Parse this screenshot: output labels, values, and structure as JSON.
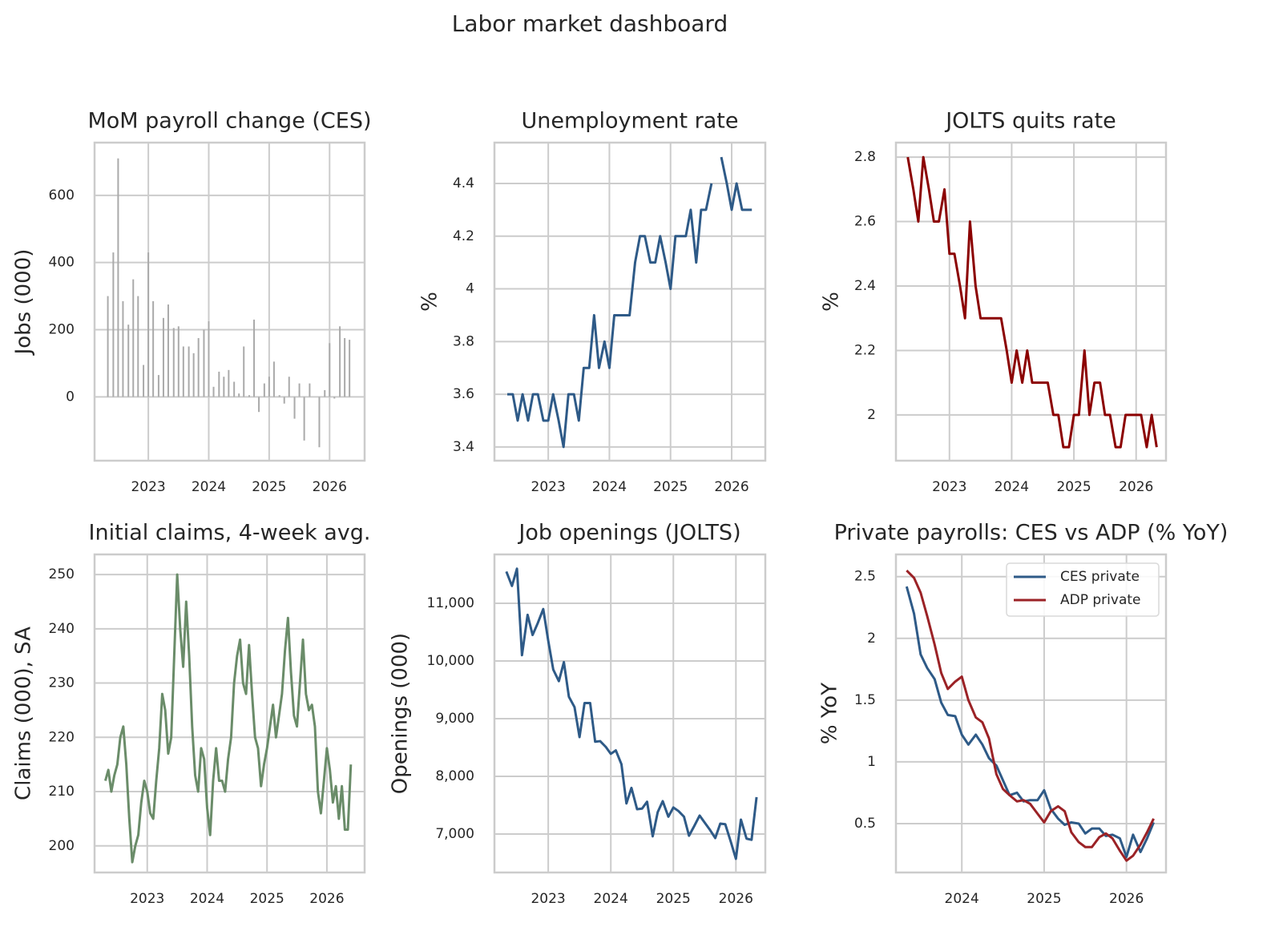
{
  "title": "Labor market dashboard",
  "chart_data": [
    {
      "type": "bar",
      "title": "MoM payroll change (CES)",
      "ylabel": "Jobs (000)",
      "color": "#aaaaaa",
      "grid": true,
      "x": [
        2022.33,
        2022.42,
        2022.5,
        2022.58,
        2022.67,
        2022.75,
        2022.83,
        2022.92,
        2023,
        2023.08,
        2023.17,
        2023.25,
        2023.33,
        2023.42,
        2023.5,
        2023.58,
        2023.67,
        2023.75,
        2023.83,
        2023.92,
        2024,
        2024.08,
        2024.17,
        2024.25,
        2024.33,
        2024.42,
        2024.5,
        2024.58,
        2024.67,
        2024.75,
        2024.83,
        2024.92,
        2025,
        2025.08,
        2025.17,
        2025.25,
        2025.33,
        2025.42,
        2025.5,
        2025.58,
        2025.67,
        2025.75,
        2025.83,
        2025.92,
        2026,
        2026.08,
        2026.17,
        2026.25,
        2026.33
      ],
      "values": [
        300,
        430,
        710,
        285,
        215,
        350,
        300,
        95,
        430,
        285,
        65,
        235,
        275,
        205,
        210,
        150,
        150,
        130,
        175,
        200,
        225,
        30,
        75,
        60,
        80,
        45,
        10,
        150,
        5,
        230,
        -45,
        40,
        60,
        105,
        5,
        -20,
        60,
        -65,
        40,
        -130,
        40,
        0,
        -150,
        20,
        160,
        -5,
        210,
        175,
        170
      ],
      "xlim": [
        2022.11,
        2026.58
      ],
      "xticks": [
        2023,
        2024,
        2025,
        2026
      ],
      "ylim": [
        -190,
        757
      ],
      "yticks": [
        0,
        200,
        400,
        600
      ]
    },
    {
      "type": "line",
      "title": "Unemployment rate",
      "ylabel": "%",
      "color": "#2e5a87",
      "grid": true,
      "x": [
        2022.33,
        2022.42,
        2022.5,
        2022.58,
        2022.67,
        2022.75,
        2022.83,
        2022.92,
        2023,
        2023.08,
        2023.17,
        2023.25,
        2023.33,
        2023.42,
        2023.5,
        2023.58,
        2023.67,
        2023.75,
        2023.83,
        2023.92,
        2024,
        2024.08,
        2024.17,
        2024.25,
        2024.33,
        2024.42,
        2024.5,
        2024.58,
        2024.67,
        2024.75,
        2024.83,
        2024.92,
        2025,
        2025.08,
        2025.17,
        2025.25,
        2025.33,
        2025.42,
        2025.5,
        2025.58,
        2025.67,
        2025.75,
        2025.83,
        2025.92,
        2026,
        2026.08,
        2026.17,
        2026.25,
        2026.33
      ],
      "values": [
        3.6,
        3.6,
        3.5,
        3.6,
        3.5,
        3.6,
        3.6,
        3.5,
        3.5,
        3.6,
        3.5,
        3.4,
        3.6,
        3.6,
        3.5,
        3.7,
        3.7,
        3.9,
        3.7,
        3.8,
        3.7,
        3.9,
        3.9,
        3.9,
        3.9,
        4.1,
        4.2,
        4.2,
        4.1,
        4.1,
        4.2,
        4.1,
        4.0,
        4.2,
        4.2,
        4.2,
        4.3,
        4.1,
        4.3,
        4.3,
        4.4,
        null,
        4.5,
        4.4,
        4.3,
        4.4,
        4.3,
        4.3,
        4.3
      ],
      "xlim": [
        2022.12,
        2026.55
      ],
      "xticks": [
        2023,
        2024,
        2025,
        2026
      ],
      "ylim": [
        3.348,
        4.555
      ],
      "yticks": [
        3.4,
        3.6,
        3.8,
        4,
        4.2,
        4.4
      ]
    },
    {
      "type": "line",
      "title": "JOLTS quits rate",
      "ylabel": "%",
      "color": "#8b0000",
      "grid": true,
      "x": [
        2022.33,
        2022.42,
        2022.5,
        2022.58,
        2022.67,
        2022.75,
        2022.83,
        2022.92,
        2023,
        2023.08,
        2023.17,
        2023.25,
        2023.33,
        2023.42,
        2023.5,
        2023.58,
        2023.67,
        2023.75,
        2023.83,
        2023.92,
        2024,
        2024.08,
        2024.17,
        2024.25,
        2024.33,
        2024.42,
        2024.5,
        2024.58,
        2024.67,
        2024.75,
        2024.83,
        2024.92,
        2025,
        2025.08,
        2025.17,
        2025.25,
        2025.33,
        2025.42,
        2025.5,
        2025.58,
        2025.67,
        2025.75,
        2025.83,
        2025.92,
        2026,
        2026.08,
        2026.17,
        2026.25,
        2026.33
      ],
      "values": [
        2.8,
        2.7,
        2.6,
        2.8,
        2.7,
        2.6,
        2.6,
        2.7,
        2.5,
        2.5,
        2.4,
        2.3,
        2.6,
        2.4,
        2.3,
        2.3,
        2.3,
        2.3,
        2.3,
        2.2,
        2.1,
        2.2,
        2.1,
        2.2,
        2.1,
        2.1,
        2.1,
        2.1,
        2.0,
        2.0,
        1.9,
        1.9,
        2.0,
        2.0,
        2.2,
        2.0,
        2.1,
        2.1,
        2.0,
        2.0,
        1.9,
        1.9,
        2.0,
        2.0,
        2.0,
        2.0,
        1.9,
        2.0,
        1.9
      ],
      "xlim": [
        2022.14,
        2026.48
      ],
      "xticks": [
        2023,
        2024,
        2025,
        2026
      ],
      "ylim": [
        1.858,
        2.845
      ],
      "yticks": [
        2,
        2.2,
        2.4,
        2.6,
        2.8
      ]
    },
    {
      "type": "line",
      "title": "Initial claims, 4-week avg.",
      "ylabel": "Claims (000), SA",
      "color": "#6a8c69",
      "grid": true,
      "x": [
        2022.3,
        2022.35,
        2022.4,
        2022.45,
        2022.5,
        2022.55,
        2022.6,
        2022.65,
        2022.7,
        2022.75,
        2022.8,
        2022.85,
        2022.9,
        2022.95,
        2023,
        2023.05,
        2023.1,
        2023.15,
        2023.2,
        2023.25,
        2023.3,
        2023.35,
        2023.4,
        2023.45,
        2023.5,
        2023.55,
        2023.6,
        2023.65,
        2023.7,
        2023.75,
        2023.8,
        2023.85,
        2023.9,
        2023.95,
        2024,
        2024.05,
        2024.1,
        2024.15,
        2024.2,
        2024.25,
        2024.3,
        2024.35,
        2024.4,
        2024.45,
        2024.5,
        2024.55,
        2024.6,
        2024.65,
        2024.7,
        2024.75,
        2024.8,
        2024.85,
        2024.9,
        2024.95,
        2025,
        2025.05,
        2025.1,
        2025.15,
        2025.2,
        2025.25,
        2025.3,
        2025.35,
        2025.4,
        2025.45,
        2025.5,
        2025.55,
        2025.6,
        2025.65,
        2025.7,
        2025.75,
        2025.8,
        2025.85,
        2025.9,
        2025.95,
        2026,
        2026.05,
        2026.1,
        2026.15,
        2026.2,
        2026.25,
        2026.3,
        2026.35,
        2026.4
      ],
      "values": [
        212,
        214,
        210,
        213,
        215,
        220,
        222,
        215,
        205,
        197,
        200,
        202,
        208,
        212,
        210,
        206,
        205,
        212,
        218,
        228,
        225,
        217,
        220,
        235,
        250,
        240,
        233,
        245,
        235,
        222,
        213,
        210,
        218,
        216,
        207,
        202,
        212,
        218,
        212,
        212,
        210,
        216,
        220,
        230,
        235,
        238,
        230,
        228,
        237,
        228,
        220,
        218,
        211,
        215,
        218,
        222,
        226,
        220,
        224,
        228,
        236,
        242,
        232,
        224,
        222,
        230,
        238,
        228,
        225,
        226,
        222,
        210,
        206,
        212,
        218,
        214,
        208,
        211,
        205,
        211,
        203,
        203,
        215
      ],
      "xlim": [
        2022.12,
        2026.63
      ],
      "xticks": [
        2023,
        2024,
        2025,
        2026
      ],
      "ylim": [
        195.1,
        253.7
      ],
      "yticks": [
        200,
        210,
        220,
        230,
        240,
        250
      ]
    },
    {
      "type": "line",
      "title": "Job openings (JOLTS)",
      "ylabel": "Openings (000)",
      "color": "#2e5a87",
      "grid": true,
      "x": [
        2022.33,
        2022.42,
        2022.5,
        2022.58,
        2022.67,
        2022.75,
        2022.83,
        2022.92,
        2023,
        2023.08,
        2023.17,
        2023.25,
        2023.33,
        2023.42,
        2023.5,
        2023.58,
        2023.67,
        2023.75,
        2023.83,
        2023.92,
        2024,
        2024.08,
        2024.17,
        2024.25,
        2024.33,
        2024.42,
        2024.5,
        2024.58,
        2024.67,
        2024.75,
        2024.83,
        2024.92,
        2025,
        2025.08,
        2025.17,
        2025.25,
        2025.33,
        2025.42,
        2025.5,
        2025.58,
        2025.67,
        2025.75,
        2025.83,
        2025.92,
        2026,
        2026.08,
        2026.17,
        2026.25,
        2026.33
      ],
      "values": [
        11550,
        11300,
        11600,
        10100,
        10800,
        10450,
        10650,
        10900,
        10350,
        9850,
        9650,
        9980,
        9380,
        9200,
        8680,
        9270,
        9270,
        8600,
        8610,
        8510,
        8390,
        8450,
        8210,
        7530,
        7800,
        7430,
        7440,
        7560,
        6960,
        7380,
        7570,
        7300,
        7460,
        7400,
        7300,
        6970,
        7130,
        7320,
        7200,
        7080,
        6930,
        7180,
        7170,
        6860,
        6570,
        7250,
        6920,
        6900,
        7640
      ],
      "xlim": [
        2022.14,
        2026.47
      ],
      "xticks": [
        2023,
        2024,
        2025,
        2026
      ],
      "ylim": [
        6333,
        11847
      ],
      "yticks": [
        {
          "value": 7000,
          "label": "7,000"
        },
        {
          "value": 8000,
          "label": "8,000"
        },
        {
          "value": 9000,
          "label": "9,000"
        },
        {
          "value": 10000,
          "label": "10,000"
        },
        {
          "value": 11000,
          "label": "11,000"
        }
      ]
    },
    {
      "type": "line",
      "title": "Private payrolls: CES vs ADP (% YoY)",
      "ylabel": "% YoY",
      "grid": true,
      "legend": "upper right",
      "x": [
        2023.33,
        2023.42,
        2023.5,
        2023.58,
        2023.67,
        2023.75,
        2023.83,
        2023.92,
        2024,
        2024.08,
        2024.17,
        2024.25,
        2024.33,
        2024.42,
        2024.5,
        2024.58,
        2024.67,
        2024.75,
        2024.83,
        2024.92,
        2025,
        2025.08,
        2025.17,
        2025.25,
        2025.33,
        2025.42,
        2025.5,
        2025.58,
        2025.67,
        2025.75,
        2025.83,
        2025.92,
        2026,
        2026.08,
        2026.17,
        2026.25,
        2026.33
      ],
      "series": [
        {
          "name": "CES private",
          "color": "#2e5a87",
          "values": [
            2.42,
            2.2,
            1.87,
            1.76,
            1.67,
            1.48,
            1.38,
            1.37,
            1.22,
            1.14,
            1.22,
            1.14,
            1.03,
            0.97,
            0.85,
            0.73,
            0.75,
            0.68,
            0.69,
            0.69,
            0.77,
            0.62,
            0.54,
            0.49,
            0.51,
            0.5,
            0.42,
            0.46,
            0.46,
            0.4,
            0.41,
            0.38,
            0.23,
            0.41,
            0.27,
            0.38,
            0.51
          ]
        },
        {
          "name": "ADP private",
          "color": "#9b2226",
          "values": [
            2.55,
            2.49,
            2.37,
            2.18,
            1.95,
            1.72,
            1.59,
            1.65,
            1.69,
            1.5,
            1.36,
            1.32,
            1.19,
            0.9,
            0.78,
            0.73,
            0.68,
            0.69,
            0.66,
            0.58,
            0.51,
            0.6,
            0.64,
            0.6,
            0.43,
            0.35,
            0.31,
            0.31,
            0.39,
            0.42,
            0.38,
            0.28,
            0.2,
            0.24,
            0.33,
            0.43,
            0.54
          ]
        }
      ],
      "xlim": [
        2023.2,
        2026.48
      ],
      "xticks": [
        2024,
        2025,
        2026
      ],
      "ylim": [
        0.104,
        2.68
      ],
      "yticks": [
        0.5,
        1,
        1.5,
        2,
        2.5
      ]
    }
  ]
}
